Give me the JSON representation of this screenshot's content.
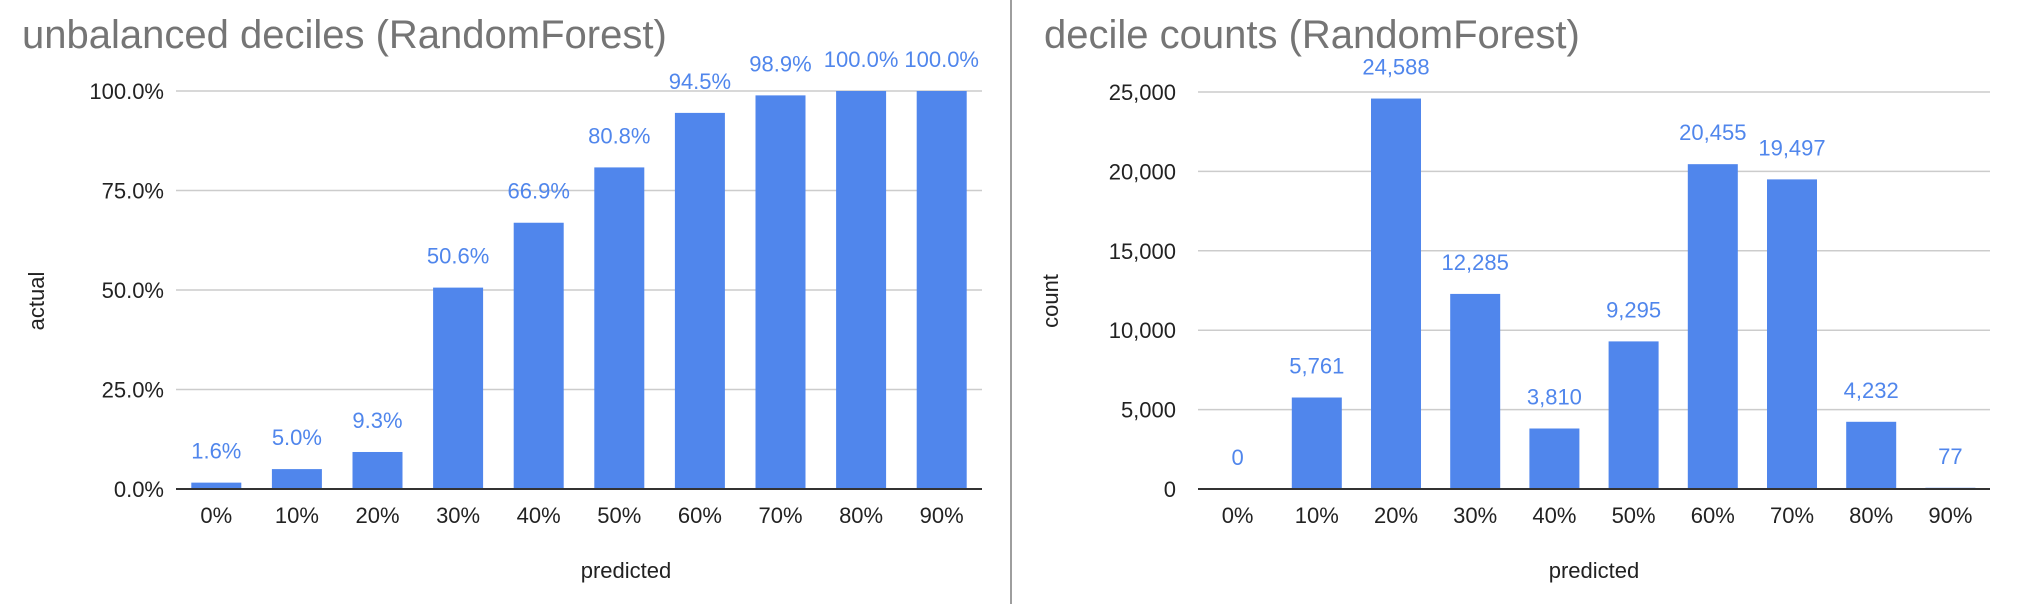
{
  "colors": {
    "bar": "#5086ec",
    "grid": "#cccccc",
    "axis": "#333333",
    "title": "#757575",
    "divider": "#9e9e9e"
  },
  "chart_data": [
    {
      "type": "bar",
      "title": "unbalanced deciles (RandomForest)",
      "xlabel": "predicted",
      "ylabel": "actual",
      "categories": [
        "0%",
        "10%",
        "20%",
        "30%",
        "40%",
        "50%",
        "60%",
        "70%",
        "80%",
        "90%"
      ],
      "values": [
        1.6,
        5.0,
        9.3,
        50.6,
        66.9,
        80.8,
        94.5,
        98.9,
        100.0,
        100.0
      ],
      "data_labels": [
        "1.6%",
        "5.0%",
        "9.3%",
        "50.6%",
        "66.9%",
        "80.8%",
        "94.5%",
        "98.9%",
        "100.0%",
        "100.0%"
      ],
      "ylim": [
        0,
        100
      ],
      "yticks": [
        0,
        25,
        50,
        75,
        100
      ],
      "ytick_labels": [
        "0.0%",
        "25.0%",
        "50.0%",
        "75.0%",
        "100.0%"
      ],
      "grid": true,
      "legend": "none"
    },
    {
      "type": "bar",
      "title": "decile counts (RandomForest)",
      "xlabel": "predicted",
      "ylabel": "count",
      "categories": [
        "0%",
        "10%",
        "20%",
        "30%",
        "40%",
        "50%",
        "60%",
        "70%",
        "80%",
        "90%"
      ],
      "values": [
        0,
        5761,
        24588,
        12285,
        3810,
        9295,
        20455,
        19497,
        4232,
        77
      ],
      "data_labels": [
        "0",
        "5,761",
        "24,588",
        "12,285",
        "3,810",
        "9,295",
        "20,455",
        "19,497",
        "4,232",
        "77"
      ],
      "ylim": [
        0,
        25000
      ],
      "yticks": [
        0,
        5000,
        10000,
        15000,
        20000,
        25000
      ],
      "ytick_labels": [
        "0",
        "5,000",
        "10,000",
        "15,000",
        "20,000",
        "25,000"
      ],
      "grid": true,
      "legend": "none"
    }
  ]
}
